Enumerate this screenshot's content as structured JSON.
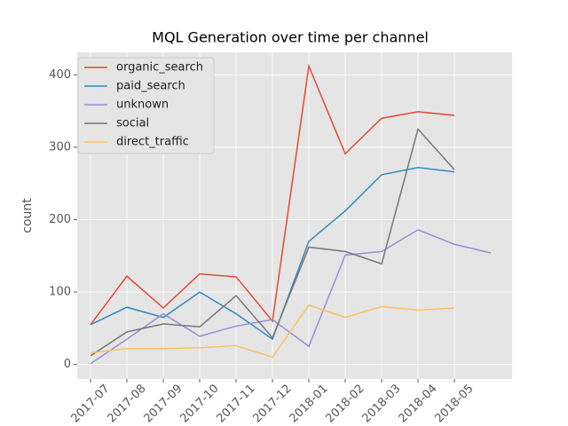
{
  "chart_data": {
    "type": "line",
    "title": "MQL Generation over time per channel",
    "y_label": "count",
    "categories": [
      "2017-07",
      "2017-08",
      "2017-09",
      "2017-10",
      "2017-11",
      "2017-12",
      "2018-01",
      "2018-02",
      "2018-03",
      "2018-04",
      "2018-05",
      null
    ],
    "series": [
      {
        "name": "organic_search",
        "color": "#E24A33",
        "values": [
          55,
          122,
          78,
          125,
          121,
          60,
          412,
          291,
          340,
          349,
          344,
          null
        ]
      },
      {
        "name": "paid_search",
        "color": "#348ABD",
        "values": [
          55,
          79,
          65,
          100,
          70,
          35,
          170,
          212,
          262,
          272,
          266,
          null
        ]
      },
      {
        "name": "unknown",
        "color": "#988ED5",
        "values": [
          1,
          35,
          70,
          39,
          53,
          62,
          25,
          151,
          156,
          186,
          166,
          154
        ]
      },
      {
        "name": "social",
        "color": "#777777",
        "values": [
          12,
          45,
          56,
          52,
          95,
          37,
          162,
          156,
          139,
          325,
          269,
          null
        ]
      },
      {
        "name": "direct_traffic",
        "color": "#FBC15E",
        "values": [
          16,
          22,
          22,
          23,
          26,
          10,
          82,
          65,
          80,
          75,
          78,
          null
        ]
      }
    ],
    "ylim": [
      -20,
      431
    ],
    "yticks": [
      0,
      100,
      200,
      300,
      400
    ],
    "grid": true,
    "legend": "upper-left"
  }
}
